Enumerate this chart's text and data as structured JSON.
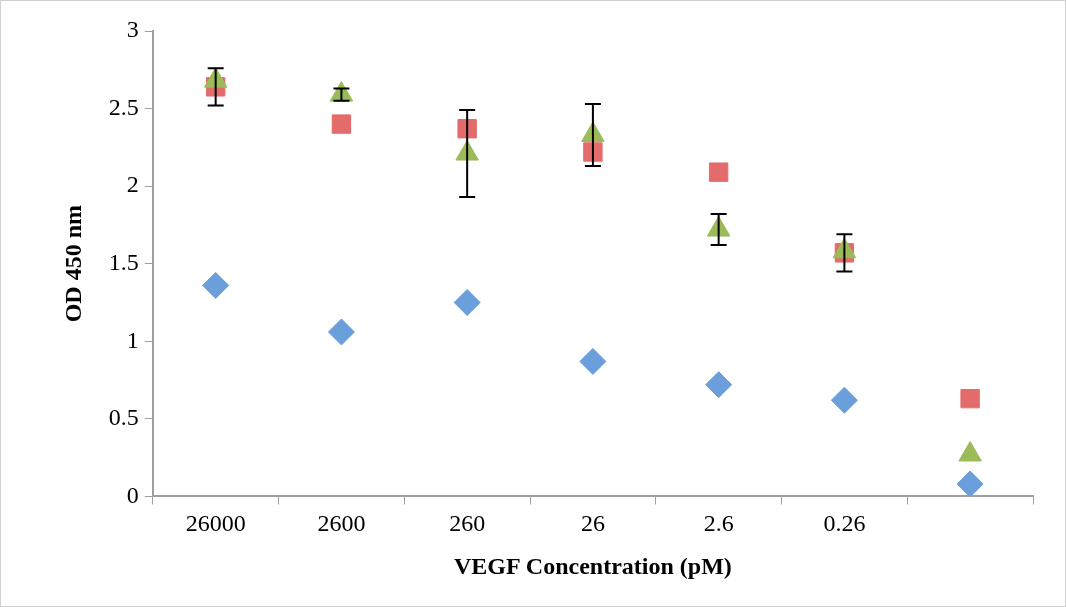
{
  "chart_data": {
    "type": "scatter",
    "xlabel": "VEGF Concentration (pM)",
    "ylabel": "OD 450 nm",
    "categories": [
      "26000",
      "2600",
      "260",
      "26",
      "2.6",
      "0.26",
      null
    ],
    "series": [
      {
        "color": "#6a9fdc",
        "marker": "diamond",
        "values": [
          1.36,
          1.06,
          1.25,
          0.87,
          0.72,
          0.62,
          0.08
        ]
      },
      {
        "color": "#e46b6b",
        "marker": "square",
        "values": [
          2.64,
          2.4,
          2.37,
          2.22,
          2.09,
          1.57,
          0.63
        ],
        "errors": [
          0.12,
          null,
          null,
          null,
          null,
          0.12,
          null
        ]
      },
      {
        "color": "#9bbb59",
        "marker": "triangle",
        "values": [
          2.68,
          2.59,
          2.21,
          2.33,
          1.72,
          1.58,
          0.27
        ],
        "errors": [
          null,
          0.04,
          0.28,
          0.2,
          0.1,
          null,
          null
        ]
      }
    ],
    "ylim": [
      0,
      3
    ],
    "yticks": [
      0,
      0.5,
      1,
      1.5,
      2,
      2.5,
      3
    ],
    "grid": false,
    "legend": false
  }
}
